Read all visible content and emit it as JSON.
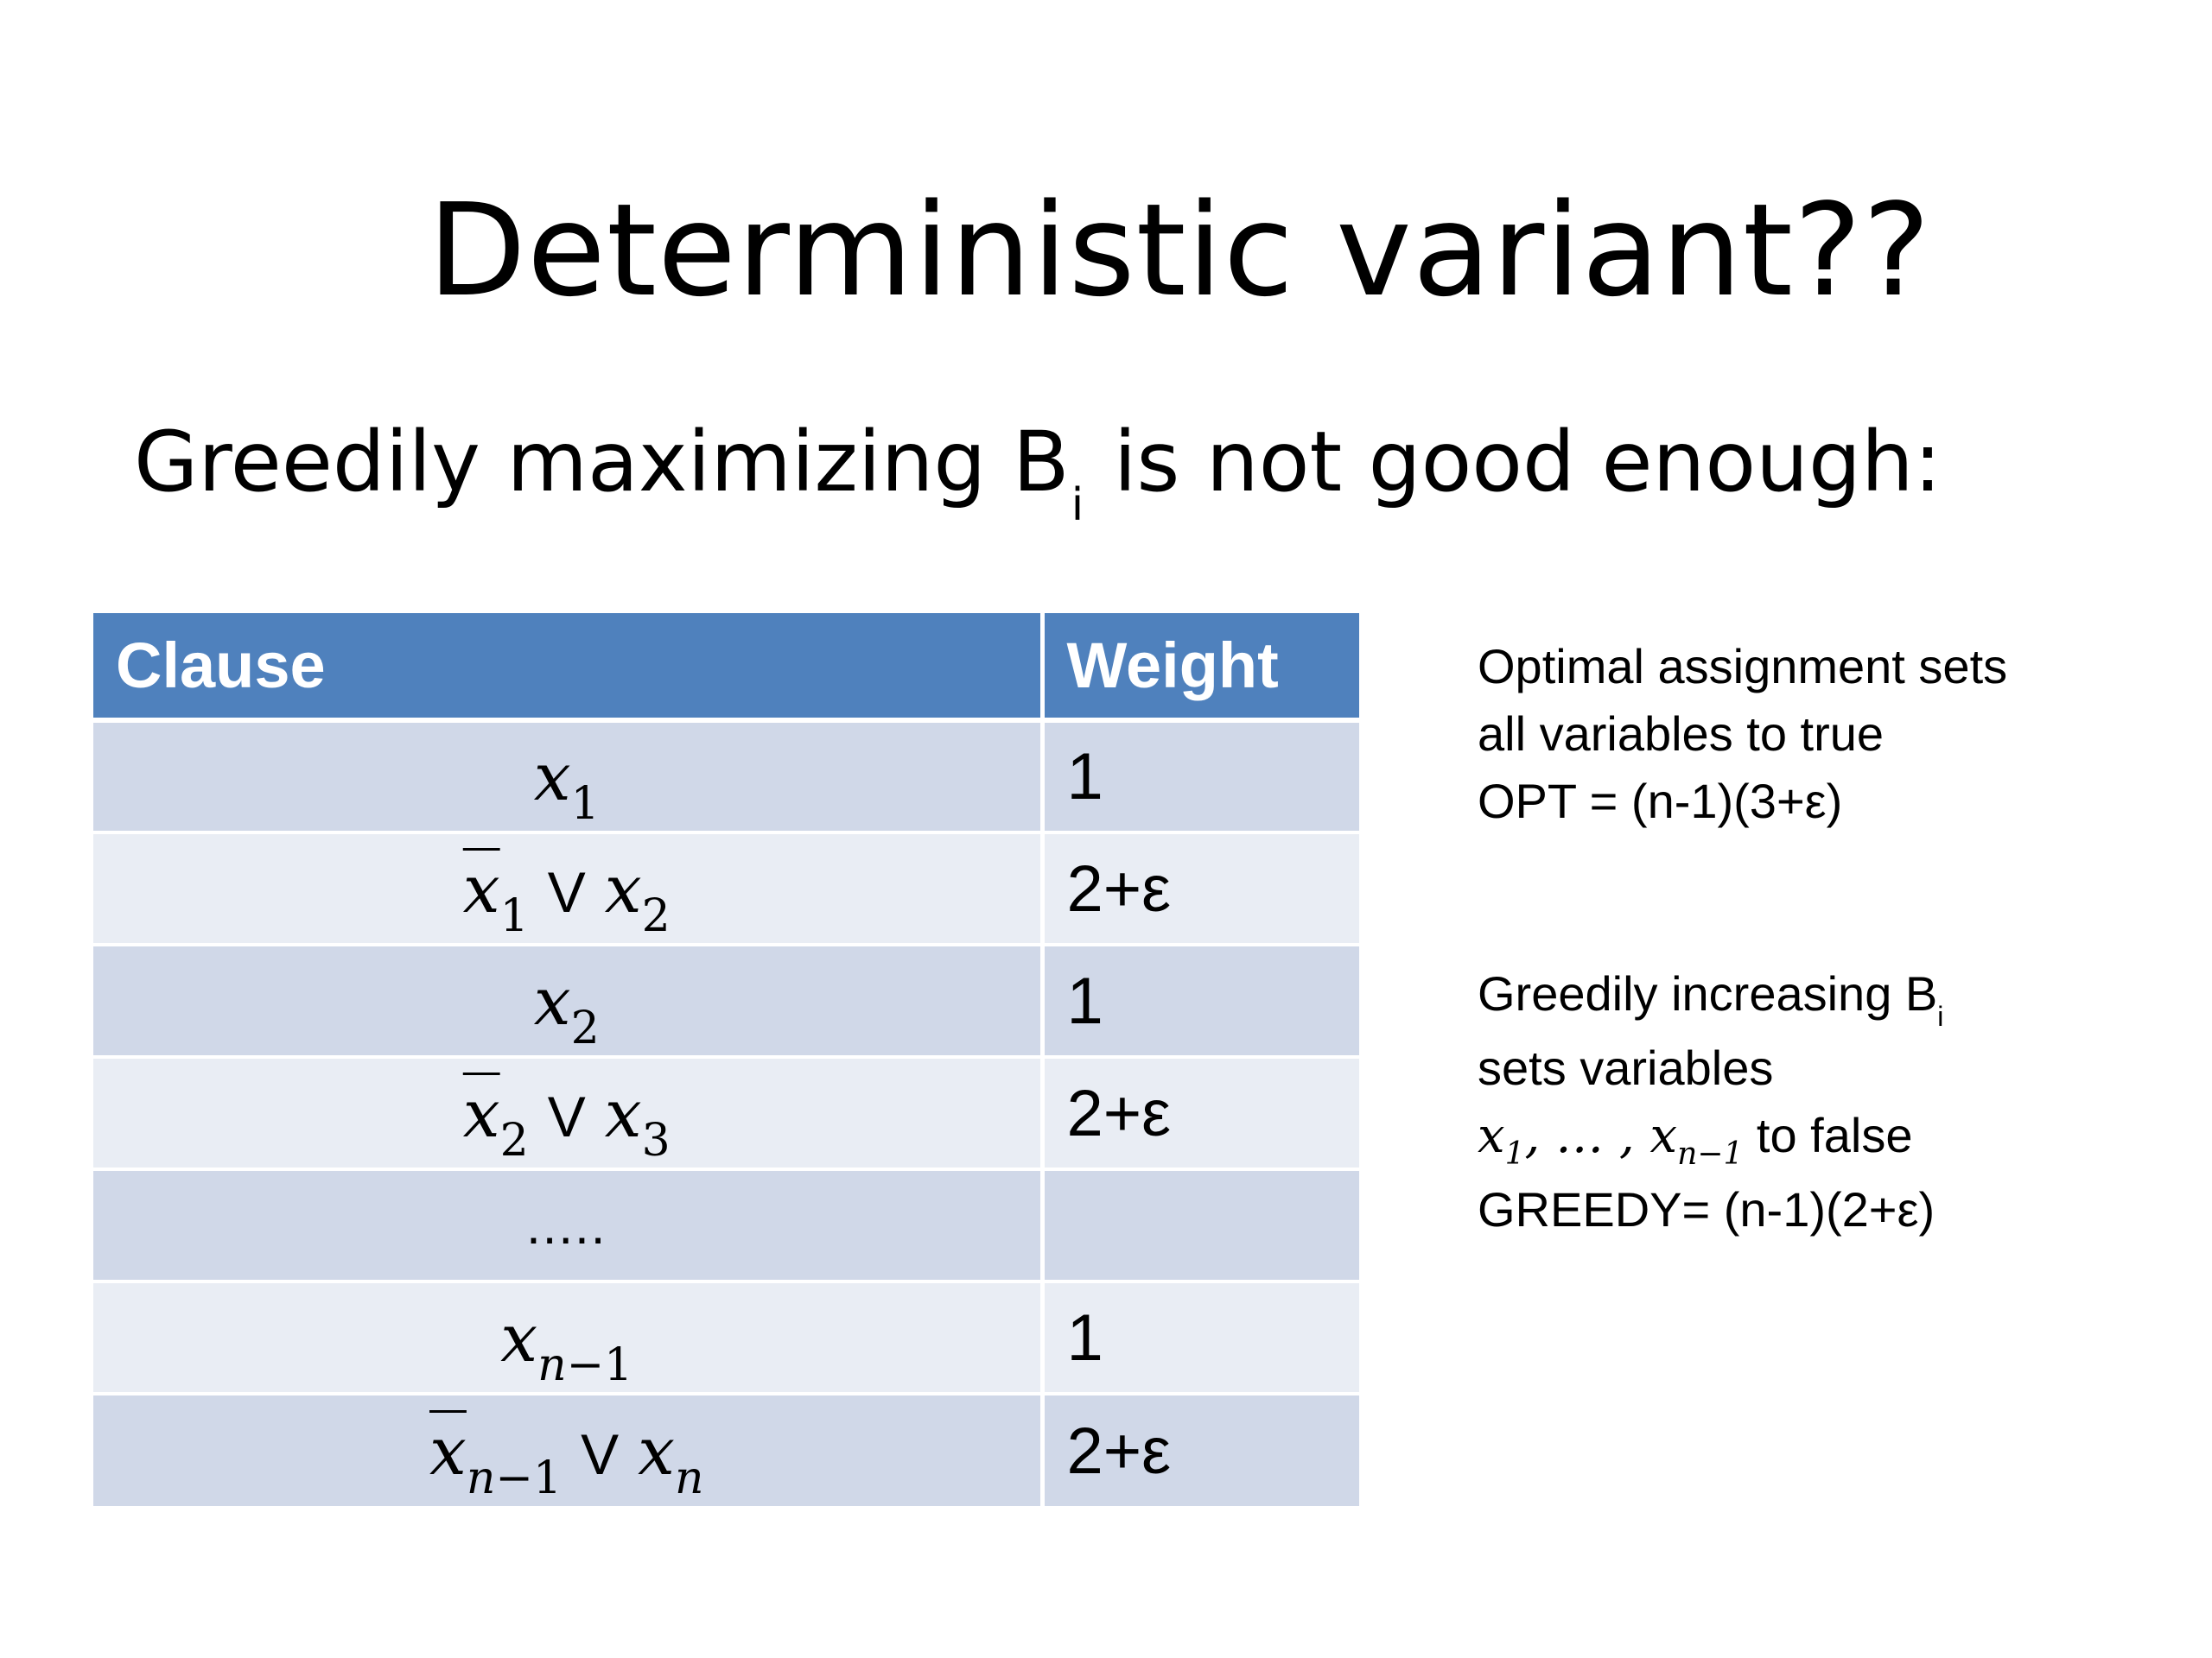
{
  "slide": {
    "title": "Deterministic variant??",
    "subtitle_text": "Greedily maximizing B",
    "subtitle_sub": "i",
    "subtitle_rest": " is not good enough:"
  },
  "table": {
    "headers": {
      "clause": "Clause",
      "weight": "Weight"
    },
    "header_color": "#4f81bd",
    "row_colors": [
      "#d0d8e8",
      "#e9edf4"
    ],
    "rows": [
      {
        "clause": "x₁",
        "weight": "1"
      },
      {
        "clause": "x̄₁ ∨ x₂",
        "weight": "2+ε"
      },
      {
        "clause": "x₂",
        "weight": "1"
      },
      {
        "clause": "x̄₂ ∨ x₃",
        "weight": "2+ε"
      },
      {
        "clause": ".....",
        "weight": ""
      },
      {
        "clause": "xₙ₋₁",
        "weight": "1"
      },
      {
        "clause": "x̄ₙ₋₁ ∨ xₙ",
        "weight": "2+ε"
      }
    ]
  },
  "notes": {
    "optimal": {
      "line1": "Optimal assignment sets",
      "line2": "all variables to true",
      "line3": "OPT = (n-1)(3+ε)"
    },
    "greedy": {
      "line1": "Greedily increasing B",
      "line1_sub": "i",
      "line2": "sets variables",
      "line3_suffix": " to false",
      "line4": "GREEDY= (n-1)(2+ε)"
    }
  }
}
